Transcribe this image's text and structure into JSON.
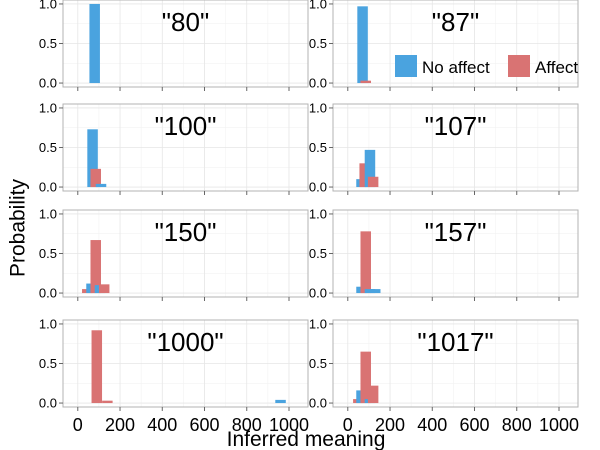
{
  "chart_data": {
    "type": "bar",
    "layout": "facet-grid 4 rows x 2 columns",
    "xlabel": "Inferred meaning",
    "ylabel": "Probability",
    "xlim": [
      -70,
      1090
    ],
    "ylim": [
      -0.05,
      1.05
    ],
    "x_ticks": [
      0,
      200,
      400,
      600,
      800,
      1000
    ],
    "y_ticks": [
      0.0,
      0.5,
      1.0
    ],
    "y_tick_labels": [
      "0.0",
      "0.5",
      "1.0"
    ],
    "grid": true,
    "legend": {
      "position": "top-right, inside panel \"87\"",
      "entries": [
        {
          "label": "No affect",
          "color": "#4aa3df"
        },
        {
          "label": "Affect",
          "color": "#d97373"
        }
      ]
    },
    "series": [
      {
        "name": "No affect",
        "color": "#4aa3df"
      },
      {
        "name": "Affect",
        "color": "#d97373"
      }
    ],
    "panels": [
      {
        "title": "\"80\"",
        "bars": [
          {
            "series": "No affect",
            "x": 80,
            "y": 1.0
          }
        ]
      },
      {
        "title": "\"87\"",
        "bars": [
          {
            "series": "No affect",
            "x": 70,
            "y": 0.97
          },
          {
            "series": "Affect",
            "x": 85,
            "y": 0.03
          }
        ]
      },
      {
        "title": "\"100\"",
        "bars": [
          {
            "series": "No affect",
            "x": 70,
            "y": 0.73
          },
          {
            "series": "Affect",
            "x": 85,
            "y": 0.23
          },
          {
            "series": "No affect",
            "x": 110,
            "y": 0.04
          }
        ]
      },
      {
        "title": "\"107\"",
        "bars": [
          {
            "series": "No affect",
            "x": 65,
            "y": 0.1
          },
          {
            "series": "Affect",
            "x": 80,
            "y": 0.3
          },
          {
            "series": "No affect",
            "x": 105,
            "y": 0.47
          },
          {
            "series": "Affect",
            "x": 120,
            "y": 0.13
          }
        ]
      },
      {
        "title": "\"150\"",
        "bars": [
          {
            "series": "Affect",
            "x": 45,
            "y": 0.05
          },
          {
            "series": "No affect",
            "x": 65,
            "y": 0.12
          },
          {
            "series": "Affect",
            "x": 85,
            "y": 0.67
          },
          {
            "series": "No affect",
            "x": 105,
            "y": 0.1
          },
          {
            "series": "Affect",
            "x": 125,
            "y": 0.11
          }
        ]
      },
      {
        "title": "\"157\"",
        "bars": [
          {
            "series": "No affect",
            "x": 65,
            "y": 0.08
          },
          {
            "series": "Affect",
            "x": 85,
            "y": 0.78
          },
          {
            "series": "No affect",
            "x": 105,
            "y": 0.05
          },
          {
            "series": "No affect",
            "x": 130,
            "y": 0.05
          }
        ]
      },
      {
        "title": "\"1000\"",
        "bars": [
          {
            "series": "Affect",
            "x": 90,
            "y": 0.92
          },
          {
            "series": "Affect",
            "x": 140,
            "y": 0.03
          },
          {
            "series": "No affect",
            "x": 960,
            "y": 0.04
          }
        ]
      },
      {
        "title": "\"1017\"",
        "bars": [
          {
            "series": "Affect",
            "x": 50,
            "y": 0.05
          },
          {
            "series": "No affect",
            "x": 65,
            "y": 0.16
          },
          {
            "series": "Affect",
            "x": 85,
            "y": 0.65
          },
          {
            "series": "No affect",
            "x": 105,
            "y": 0.05
          },
          {
            "series": "Affect",
            "x": 120,
            "y": 0.22
          }
        ]
      }
    ]
  }
}
